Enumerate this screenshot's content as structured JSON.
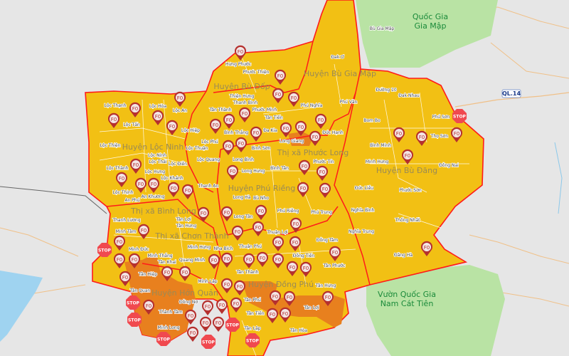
{
  "colors": {
    "background": "#e6e6e6",
    "risk_high": "#f2c014",
    "risk_very_high": "#e8801e",
    "border": "#ff1a1a",
    "park": "#b9e3a4",
    "marker": "#b5302e",
    "stop": "#f0494f"
  },
  "parks": [
    "Quốc Gia Gia Mập",
    "Vườn Quốc Gia Nam Cát Tiên"
  ],
  "park_lines": [
    [
      "Quốc Gia",
      "Gia Mập"
    ],
    [
      "Vườn Quốc Gia",
      "Nam Cát Tiên"
    ]
  ],
  "roads": [
    "QL.14"
  ],
  "districts": [
    "Huyện Bù Gia Mập",
    "Huyện Bù Đốp",
    "Huyện Lộc Ninh",
    "Huyện Phú Riềng",
    "Huyện Bù Đăng",
    "Thị xã Phước Long",
    "Thị xã Bình Long",
    "Thị xã Chơn Thành",
    "Huyện Đồng Phú",
    "Huyện Hớn Quản"
  ],
  "communes": [
    "Bù Gia Mập",
    "Đak Ơ",
    "Phú Văn",
    "Phú Nghĩa",
    "Đức Hạnh",
    "Đường 10",
    "Đak Nhau",
    "Bom Bo",
    "Phú Sơn",
    "Thọ Sơn",
    "Bình Minh",
    "Đồng Nai",
    "Minh Hưng",
    "Đức Liễu",
    "Phước Sơn",
    "Nghĩa Bình",
    "Nghĩa Trung",
    "Thống Nhất",
    "Đăng Hà",
    "Hưng Phước",
    "Phước Thiện",
    "Thiện Hưng",
    "Thanh Bình",
    "Phước Minh",
    "Tân Thành",
    "Tân Tiến",
    "Đa Kia",
    "Bình Thắng",
    "Lộc Thạnh",
    "Lộc Hòa",
    "Lộc Tấn",
    "Lộc An",
    "Lộc Hiệp",
    "Lộc Phú",
    "Lộc Thiện",
    "Lộc Ninh",
    "Lộc Thuận",
    "Lộc Thái",
    "Lộc Điền",
    "Lộc Quang",
    "Lộc Thành",
    "Lộc Hưng",
    "Lộc Khánh",
    "Long Bình",
    "Long Hưng",
    "Bình Sơn",
    "Long Giang",
    "Bình Tân",
    "Phước Tín",
    "Long Hà",
    "Thanh An",
    "Bù Nho",
    "Long Tân",
    "Phú Riềng",
    "Phú Trung",
    "Thuận Lợi",
    "Thuận Phú",
    "Đồng Tâm",
    "Đồng Tiến",
    "Tân Phước",
    "Tân Thành",
    "Tân Hưng",
    "Tân Phú",
    "Tân Lợi",
    "Tân Tiến",
    "Tân Lập",
    "Tân Hòa",
    "Lộc Thịnh",
    "An Khương",
    "An Phú",
    "Thanh Lương",
    "Tân Lợi",
    "Tân Hưng",
    "Minh Tâm",
    "Minh Đức",
    "Tân Khai",
    "Tân Quan",
    "Tân Hiệp",
    "Đồng Nơ",
    "Minh Hưng",
    "Nha Bích",
    "Minh Lập",
    "Minh Thắng",
    "Minh Long",
    "Thành Tâm",
    "Quang Minh"
  ],
  "markers": {
    "f0_label": "F0",
    "stop_label": "STOP"
  }
}
